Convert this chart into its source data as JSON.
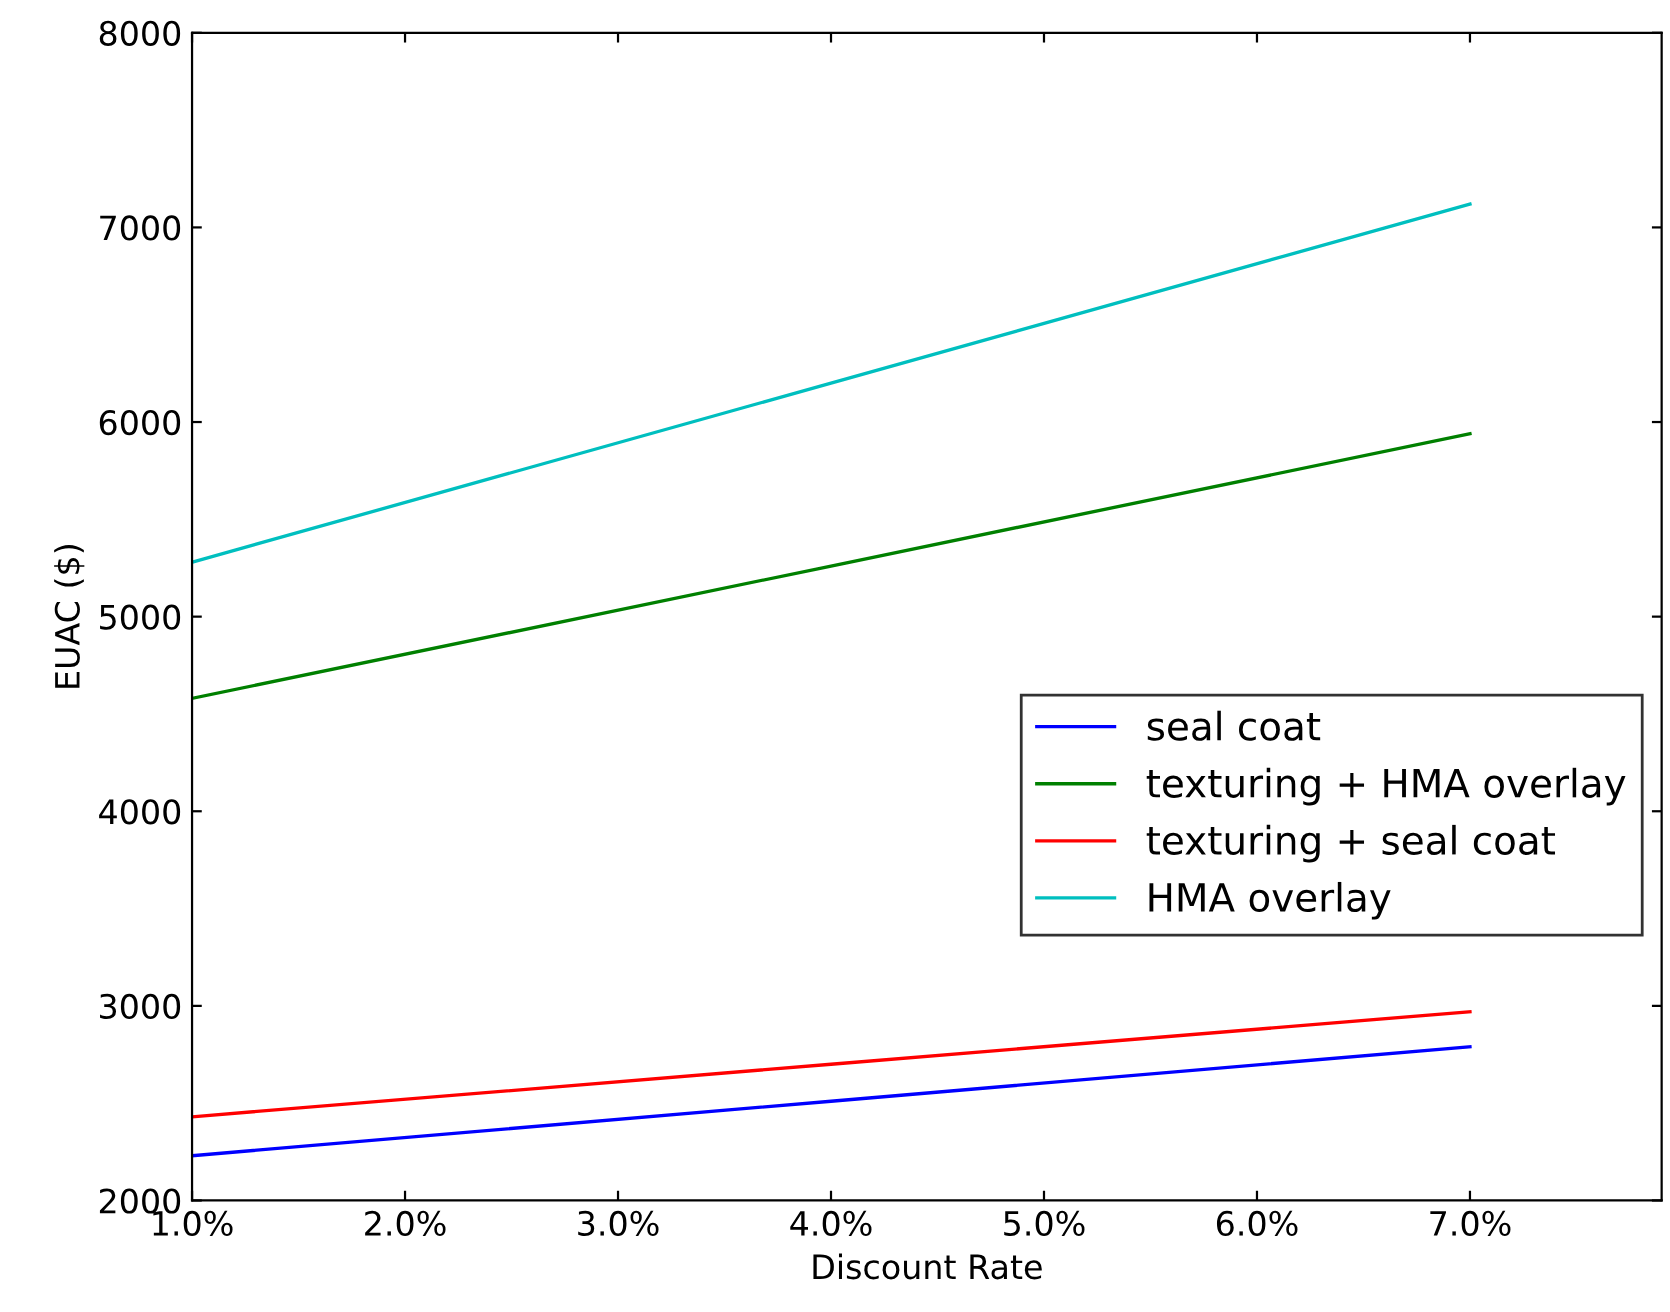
{
  "chart_data": {
    "type": "line",
    "xlabel": "Discount Rate",
    "ylabel": "EUAC ($)",
    "x": [
      1,
      4,
      7
    ],
    "series": [
      {
        "name": "seal coat",
        "color": "#0000ff",
        "values": [
          2230,
          2510,
          2790
        ]
      },
      {
        "name": "texturing + HMA overlay",
        "color": "#008000",
        "values": [
          4580,
          5260,
          5940
        ]
      },
      {
        "name": "texturing + seal coat",
        "color": "#ff0000",
        "values": [
          2430,
          2700,
          2970
        ]
      },
      {
        "name": "HMA overlay",
        "color": "#00bfbf",
        "values": [
          5280,
          6200,
          7120
        ]
      }
    ],
    "xlim": [
      1,
      7.9
    ],
    "xticks": [
      {
        "value": 1,
        "label": "1.0%"
      },
      {
        "value": 2,
        "label": "2.0%"
      },
      {
        "value": 3,
        "label": "3.0%"
      },
      {
        "value": 4,
        "label": "4.0%"
      },
      {
        "value": 5,
        "label": "5.0%"
      },
      {
        "value": 6,
        "label": "6.0%"
      },
      {
        "value": 7,
        "label": "7.0%"
      }
    ],
    "ylim": [
      2000,
      8000
    ],
    "yticks": [
      2000,
      3000,
      4000,
      5000,
      6000,
      7000,
      8000
    ],
    "grid": false,
    "legend": "right",
    "marker": "none",
    "line_style": "solid"
  }
}
